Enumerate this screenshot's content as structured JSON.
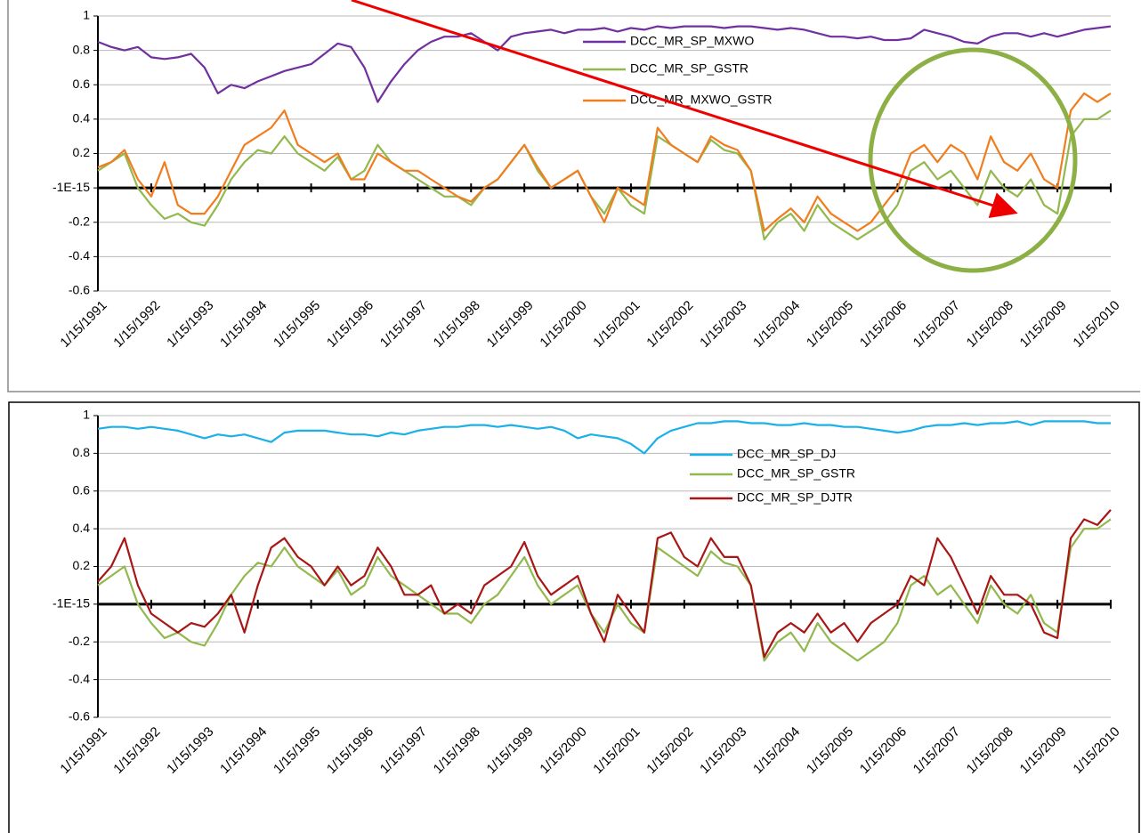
{
  "chart_data": [
    {
      "type": "line",
      "x": [
        "1/15/1991",
        "4/15/1991",
        "7/15/1991",
        "10/15/1991",
        "1/15/1992",
        "4/15/1992",
        "7/15/1992",
        "10/15/1992",
        "1/15/1993",
        "4/15/1993",
        "7/15/1993",
        "10/15/1993",
        "1/15/1994",
        "4/15/1994",
        "7/15/1994",
        "10/15/1994",
        "1/15/1995",
        "4/15/1995",
        "7/15/1995",
        "10/15/1995",
        "1/15/1996",
        "4/15/1996",
        "7/15/1996",
        "10/15/1996",
        "1/15/1997",
        "4/15/1997",
        "7/15/1997",
        "10/15/1997",
        "1/15/1998",
        "4/15/1998",
        "7/15/1998",
        "10/15/1998",
        "1/15/1999",
        "4/15/1999",
        "7/15/1999",
        "10/15/1999",
        "1/15/2000",
        "4/15/2000",
        "7/15/2000",
        "10/15/2000",
        "1/15/2001",
        "4/15/2001",
        "7/15/2001",
        "10/15/2001",
        "1/15/2002",
        "4/15/2002",
        "7/15/2002",
        "10/15/2002",
        "1/15/2003",
        "4/15/2003",
        "7/15/2003",
        "10/15/2003",
        "1/15/2004",
        "4/15/2004",
        "7/15/2004",
        "10/15/2004",
        "1/15/2005",
        "4/15/2005",
        "7/15/2005",
        "10/15/2005",
        "1/15/2006",
        "4/15/2006",
        "7/15/2006",
        "10/15/2006",
        "1/15/2007",
        "4/15/2007",
        "7/15/2007",
        "10/15/2007",
        "1/15/2008",
        "4/15/2008",
        "7/15/2008",
        "10/15/2008",
        "1/15/2009",
        "4/15/2009",
        "7/15/2009",
        "10/15/2009",
        "1/15/2010"
      ],
      "xlim": [
        "1/15/1991",
        "1/15/2010"
      ],
      "xticks": [
        "1/15/1991",
        "1/15/1992",
        "1/15/1993",
        "1/15/1994",
        "1/15/1995",
        "1/15/1996",
        "1/15/1997",
        "1/15/1998",
        "1/15/1999",
        "1/15/2000",
        "1/15/2001",
        "1/15/2002",
        "1/15/2003",
        "1/15/2004",
        "1/15/2005",
        "1/15/2006",
        "1/15/2007",
        "1/15/2008",
        "1/15/2009",
        "1/15/2010"
      ],
      "ylim": [
        -0.6,
        1
      ],
      "yticks": [
        -0.6,
        -0.4,
        -0.2,
        {
          "value": -1e-15,
          "label": "-1E-15"
        },
        0.2,
        0.4,
        0.6,
        0.8,
        1
      ],
      "grid": true,
      "series": [
        {
          "name": "DCC_MR_SP_MXWO",
          "color": "#7030a0",
          "values": [
            0.85,
            0.82,
            0.8,
            0.82,
            0.76,
            0.75,
            0.76,
            0.78,
            0.7,
            0.55,
            0.6,
            0.58,
            0.62,
            0.65,
            0.68,
            0.7,
            0.72,
            0.78,
            0.84,
            0.82,
            0.7,
            0.5,
            0.62,
            0.72,
            0.8,
            0.85,
            0.88,
            0.88,
            0.9,
            0.85,
            0.8,
            0.88,
            0.9,
            0.91,
            0.92,
            0.9,
            0.92,
            0.92,
            0.93,
            0.91,
            0.93,
            0.92,
            0.94,
            0.93,
            0.94,
            0.94,
            0.94,
            0.93,
            0.94,
            0.94,
            0.93,
            0.92,
            0.93,
            0.92,
            0.9,
            0.88,
            0.88,
            0.87,
            0.88,
            0.86,
            0.86,
            0.87,
            0.92,
            0.9,
            0.88,
            0.85,
            0.84,
            0.88,
            0.9,
            0.9,
            0.88,
            0.9,
            0.88,
            0.9,
            0.92,
            0.93,
            0.94
          ]
        },
        {
          "name": "DCC_MR_SP_GSTR",
          "color": "#92b84e",
          "values": [
            0.1,
            0.15,
            0.2,
            0.0,
            -0.1,
            -0.18,
            -0.15,
            -0.2,
            -0.22,
            -0.1,
            0.05,
            0.15,
            0.22,
            0.2,
            0.3,
            0.2,
            0.15,
            0.1,
            0.18,
            0.05,
            0.1,
            0.25,
            0.15,
            0.1,
            0.05,
            0.0,
            -0.05,
            -0.05,
            -0.1,
            0.0,
            0.05,
            0.15,
            0.25,
            0.1,
            0.0,
            0.05,
            0.1,
            -0.05,
            -0.15,
            0.0,
            -0.1,
            -0.15,
            0.3,
            0.25,
            0.2,
            0.15,
            0.28,
            0.22,
            0.2,
            0.1,
            -0.3,
            -0.2,
            -0.15,
            -0.25,
            -0.1,
            -0.2,
            -0.25,
            -0.3,
            -0.25,
            -0.2,
            -0.1,
            0.1,
            0.15,
            0.05,
            0.1,
            0.0,
            -0.1,
            0.1,
            0.0,
            -0.05,
            0.05,
            -0.1,
            -0.15,
            0.3,
            0.4,
            0.4,
            0.45
          ]
        },
        {
          "name": "DCC_MR_MXWO_GSTR",
          "color": "#f07d1e",
          "values": [
            0.12,
            0.15,
            0.22,
            0.05,
            -0.05,
            0.15,
            -0.1,
            -0.15,
            -0.15,
            -0.05,
            0.1,
            0.25,
            0.3,
            0.35,
            0.45,
            0.25,
            0.2,
            0.15,
            0.2,
            0.05,
            0.05,
            0.2,
            0.15,
            0.1,
            0.1,
            0.05,
            0.0,
            -0.05,
            -0.08,
            0.0,
            0.05,
            0.15,
            0.25,
            0.12,
            0.0,
            0.05,
            0.1,
            -0.05,
            -0.2,
            0.0,
            -0.05,
            -0.1,
            0.35,
            0.25,
            0.2,
            0.15,
            0.3,
            0.25,
            0.22,
            0.1,
            -0.25,
            -0.18,
            -0.12,
            -0.2,
            -0.05,
            -0.15,
            -0.2,
            -0.25,
            -0.2,
            -0.1,
            0.0,
            0.2,
            0.25,
            0.15,
            0.25,
            0.2,
            0.05,
            0.3,
            0.15,
            0.1,
            0.2,
            0.05,
            0.0,
            0.45,
            0.55,
            0.5,
            0.55
          ]
        }
      ]
    },
    {
      "type": "line",
      "x": [
        "1/15/1991",
        "4/15/1991",
        "7/15/1991",
        "10/15/1991",
        "1/15/1992",
        "4/15/1992",
        "7/15/1992",
        "10/15/1992",
        "1/15/1993",
        "4/15/1993",
        "7/15/1993",
        "10/15/1993",
        "1/15/1994",
        "4/15/1994",
        "7/15/1994",
        "10/15/1994",
        "1/15/1995",
        "4/15/1995",
        "7/15/1995",
        "10/15/1995",
        "1/15/1996",
        "4/15/1996",
        "7/15/1996",
        "10/15/1996",
        "1/15/1997",
        "4/15/1997",
        "7/15/1997",
        "10/15/1997",
        "1/15/1998",
        "4/15/1998",
        "7/15/1998",
        "10/15/1998",
        "1/15/1999",
        "4/15/1999",
        "7/15/1999",
        "10/15/1999",
        "1/15/2000",
        "4/15/2000",
        "7/15/2000",
        "10/15/2000",
        "1/15/2001",
        "4/15/2001",
        "7/15/2001",
        "10/15/2001",
        "1/15/2002",
        "4/15/2002",
        "7/15/2002",
        "10/15/2002",
        "1/15/2003",
        "4/15/2003",
        "7/15/2003",
        "10/15/2003",
        "1/15/2004",
        "4/15/2004",
        "7/15/2004",
        "10/15/2004",
        "1/15/2005",
        "4/15/2005",
        "7/15/2005",
        "10/15/2005",
        "1/15/2006",
        "4/15/2006",
        "7/15/2006",
        "10/15/2006",
        "1/15/2007",
        "4/15/2007",
        "7/15/2007",
        "10/15/2007",
        "1/15/2008",
        "4/15/2008",
        "7/15/2008",
        "10/15/2008",
        "1/15/2009",
        "4/15/2009",
        "7/15/2009",
        "10/15/2009",
        "1/15/2010"
      ],
      "xlim": [
        "1/15/1991",
        "1/15/2010"
      ],
      "xticks": [
        "1/15/1991",
        "1/15/1992",
        "1/15/1993",
        "1/15/1994",
        "1/15/1995",
        "1/15/1996",
        "1/15/1997",
        "1/15/1998",
        "1/15/1999",
        "1/15/2000",
        "1/15/2001",
        "1/15/2002",
        "1/15/2003",
        "1/15/2004",
        "1/15/2005",
        "1/15/2006",
        "1/15/2007",
        "1/15/2008",
        "1/15/2009",
        "1/15/2010"
      ],
      "ylim": [
        -0.6,
        1
      ],
      "yticks": [
        -0.6,
        -0.4,
        -0.2,
        {
          "value": -1e-15,
          "label": "-1E-15"
        },
        0.2,
        0.4,
        0.6,
        0.8,
        1
      ],
      "grid": true,
      "series": [
        {
          "name": "DCC_MR_SP_DJ",
          "color": "#1ab0e8",
          "values": [
            0.93,
            0.94,
            0.94,
            0.93,
            0.94,
            0.93,
            0.92,
            0.9,
            0.88,
            0.9,
            0.89,
            0.9,
            0.88,
            0.86,
            0.91,
            0.92,
            0.92,
            0.92,
            0.91,
            0.9,
            0.9,
            0.89,
            0.91,
            0.9,
            0.92,
            0.93,
            0.94,
            0.94,
            0.95,
            0.95,
            0.94,
            0.95,
            0.94,
            0.93,
            0.94,
            0.92,
            0.88,
            0.9,
            0.89,
            0.88,
            0.85,
            0.8,
            0.88,
            0.92,
            0.94,
            0.96,
            0.96,
            0.97,
            0.97,
            0.96,
            0.96,
            0.95,
            0.95,
            0.96,
            0.95,
            0.95,
            0.94,
            0.94,
            0.93,
            0.92,
            0.91,
            0.92,
            0.94,
            0.95,
            0.95,
            0.96,
            0.95,
            0.96,
            0.96,
            0.97,
            0.95,
            0.97,
            0.97,
            0.97,
            0.97,
            0.96,
            0.96
          ]
        },
        {
          "name": "DCC_MR_SP_GSTR",
          "color": "#92b84e",
          "values": [
            0.1,
            0.15,
            0.2,
            0.0,
            -0.1,
            -0.18,
            -0.15,
            -0.2,
            -0.22,
            -0.1,
            0.05,
            0.15,
            0.22,
            0.2,
            0.3,
            0.2,
            0.15,
            0.1,
            0.18,
            0.05,
            0.1,
            0.25,
            0.15,
            0.1,
            0.05,
            0.0,
            -0.05,
            -0.05,
            -0.1,
            0.0,
            0.05,
            0.15,
            0.25,
            0.1,
            0.0,
            0.05,
            0.1,
            -0.05,
            -0.15,
            0.0,
            -0.1,
            -0.15,
            0.3,
            0.25,
            0.2,
            0.15,
            0.28,
            0.22,
            0.2,
            0.1,
            -0.3,
            -0.2,
            -0.15,
            -0.25,
            -0.1,
            -0.2,
            -0.25,
            -0.3,
            -0.25,
            -0.2,
            -0.1,
            0.1,
            0.15,
            0.05,
            0.1,
            0.0,
            -0.1,
            0.1,
            0.0,
            -0.05,
            0.05,
            -0.1,
            -0.15,
            0.3,
            0.4,
            0.4,
            0.45
          ]
        },
        {
          "name": "DCC_MR_SP_DJTR",
          "color": "#a81616",
          "values": [
            0.12,
            0.2,
            0.35,
            0.1,
            -0.05,
            -0.1,
            -0.15,
            -0.1,
            -0.12,
            -0.05,
            0.05,
            -0.15,
            0.1,
            0.3,
            0.35,
            0.25,
            0.2,
            0.1,
            0.2,
            0.1,
            0.15,
            0.3,
            0.2,
            0.05,
            0.05,
            0.1,
            -0.05,
            0.0,
            -0.05,
            0.1,
            0.15,
            0.2,
            0.33,
            0.15,
            0.05,
            0.1,
            0.15,
            -0.05,
            -0.2,
            0.05,
            -0.05,
            -0.15,
            0.35,
            0.38,
            0.25,
            0.2,
            0.35,
            0.25,
            0.25,
            0.1,
            -0.28,
            -0.15,
            -0.1,
            -0.15,
            -0.05,
            -0.15,
            -0.1,
            -0.2,
            -0.1,
            -0.05,
            0.0,
            0.15,
            0.1,
            0.35,
            0.25,
            0.1,
            -0.05,
            0.15,
            0.05,
            0.05,
            0.0,
            -0.15,
            -0.18,
            0.35,
            0.45,
            0.42,
            0.5
          ]
        }
      ]
    }
  ]
}
